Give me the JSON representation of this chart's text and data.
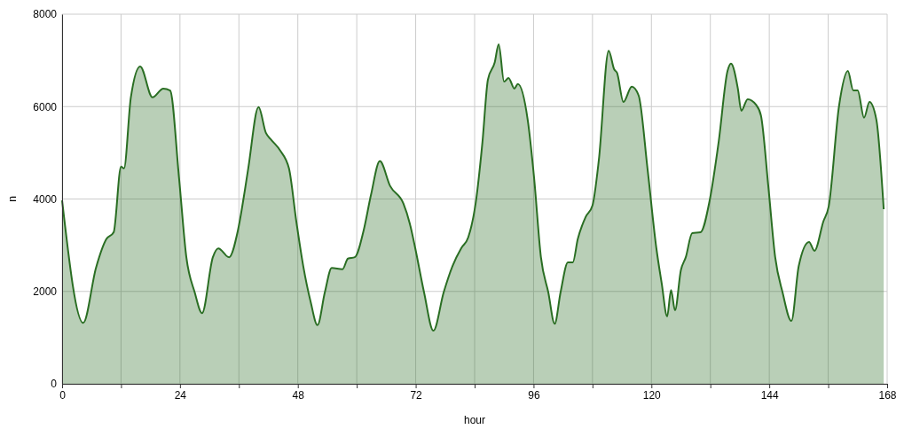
{
  "chart_data": {
    "type": "area",
    "xlabel": "hour",
    "ylabel": "n",
    "xlim": [
      0,
      168
    ],
    "xticks": [
      0,
      {
        "value": 12,
        "label": null
      },
      24,
      {
        "value": 36,
        "label": null
      },
      48,
      {
        "value": 60,
        "label": null
      },
      72,
      {
        "value": 84,
        "label": null
      },
      96,
      {
        "value": 108,
        "label": null
      },
      120,
      {
        "value": 132,
        "label": null
      },
      144,
      {
        "value": 156,
        "label": null
      },
      168
    ],
    "ylim": [
      0,
      8000
    ],
    "yticks": [
      0,
      2000,
      4000,
      6000,
      8000
    ],
    "grid": true,
    "series": [
      {
        "color": "#2a6e23",
        "x": [
          0,
          4.3,
          6.9,
          9,
          10.5,
          12,
          12.6,
          14,
          15.9,
          18.4,
          20.6,
          22,
          23.8,
          25.3,
          27,
          28.5,
          30.7,
          31.8,
          34,
          35.8,
          37.2,
          37.9,
          40,
          41.5,
          42.6,
          44.4,
          46.2,
          47.7,
          49.1,
          50.6,
          52,
          53.5,
          54.9,
          57.1,
          58.2,
          59.6,
          61.4,
          62.9,
          64.7,
          66.8,
          69.5,
          70.8,
          71.9,
          73.7,
          75.6,
          77.7,
          79.5,
          81.3,
          82.7,
          84.2,
          85.6,
          86.7,
          88.1,
          88.9,
          90,
          90.9,
          92.1,
          92.8,
          94.8,
          96.1,
          97.5,
          99,
          100.3,
          101.5,
          103,
          104,
          105,
          106.6,
          108,
          109.3,
          111.3,
          112.4,
          113,
          114.3,
          116,
          117.4,
          119.2,
          121,
          122.1,
          123.2,
          124,
          124.8,
          126,
          127,
          128.3,
          130,
          131.9,
          133.7,
          135.5,
          136.2,
          137.6,
          138.3,
          139.6,
          141.3,
          142.3,
          143.8,
          145.2,
          146.7,
          148.5,
          150,
          152.1,
          153.2,
          155,
          156.1,
          158.2,
          160,
          161.1,
          162,
          163.3,
          164.4,
          165.8,
          167.3
        ],
        "values": [
          3970,
          1320,
          2510,
          3130,
          3280,
          4700,
          4660,
          6200,
          6870,
          6200,
          6390,
          6350,
          4470,
          2740,
          1980,
          1530,
          2740,
          2930,
          2740,
          3320,
          4180,
          4660,
          5990,
          5430,
          5280,
          5050,
          4660,
          3510,
          2550,
          1780,
          1270,
          1980,
          2510,
          2480,
          2710,
          2740,
          3320,
          4090,
          4820,
          4280,
          3900,
          3470,
          2940,
          1980,
          1150,
          1980,
          2550,
          2940,
          3170,
          3900,
          5240,
          6580,
          6960,
          7350,
          6540,
          6620,
          6390,
          6490,
          5720,
          4470,
          2740,
          1980,
          1300,
          1980,
          2630,
          2630,
          3130,
          3610,
          3860,
          4850,
          7210,
          6810,
          6730,
          6100,
          6430,
          6240,
          4660,
          2940,
          2170,
          1460,
          2030,
          1590,
          2460,
          2740,
          3260,
          3280,
          3990,
          5240,
          6770,
          6930,
          6390,
          5910,
          6160,
          6040,
          5810,
          4280,
          2740,
          1980,
          1360,
          2550,
          3070,
          2880,
          3510,
          3840,
          6010,
          6770,
          6350,
          6350,
          5760,
          6100,
          5720,
          3780
        ]
      }
    ]
  }
}
